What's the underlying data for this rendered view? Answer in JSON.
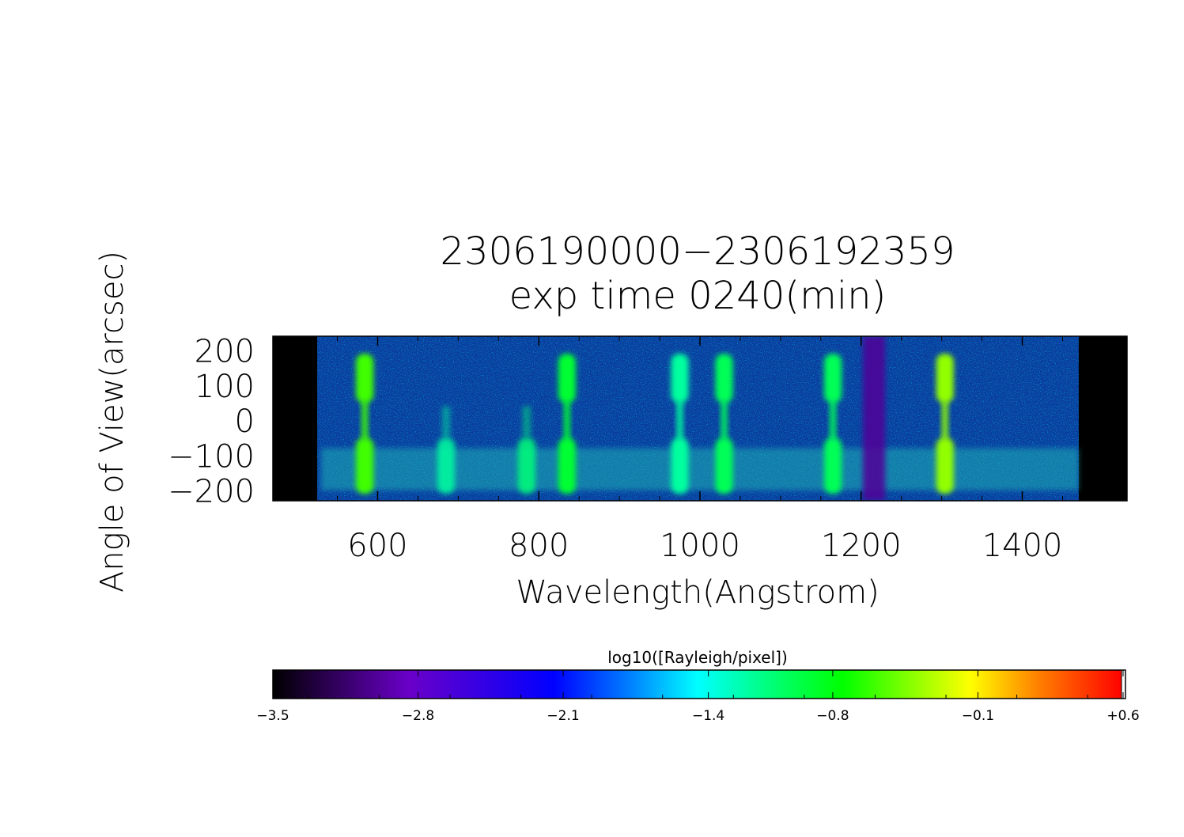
{
  "chart_data": {
    "type": "heatmap",
    "title": [
      "2306190000−2306192359",
      "exp time 0240(min)"
    ],
    "xlabel": "Wavelength(Angstrom)",
    "ylabel": "Angle of View(arcsec)",
    "xlim": [
      470,
      1530
    ],
    "ylim": [
      -230,
      240
    ],
    "x_ticks": [
      600,
      800,
      1000,
      1200,
      1400
    ],
    "x_tick_labels": [
      "600",
      "800",
      "1000",
      "1200",
      "1400"
    ],
    "y_ticks": [
      200,
      100,
      0,
      -100,
      -200
    ],
    "y_tick_labels": [
      "200",
      "100",
      "0",
      "−100",
      "−200"
    ],
    "data_wavelength_range": [
      525,
      1470
    ],
    "emission_lines": [
      {
        "wavelength": 584,
        "log_intensity": -0.6,
        "spatial": "both"
      },
      {
        "wavelength": 835,
        "log_intensity": -0.9,
        "spatial": "both"
      },
      {
        "wavelength": 975,
        "log_intensity": -1.2,
        "spatial": "both"
      },
      {
        "wavelength": 1030,
        "log_intensity": -1.0,
        "spatial": "both"
      },
      {
        "wavelength": 1165,
        "log_intensity": -1.0,
        "spatial": "both"
      },
      {
        "wavelength": 1304,
        "log_intensity": -0.4,
        "spatial": "both"
      },
      {
        "wavelength": 685,
        "log_intensity": -1.2,
        "spatial": "lower"
      },
      {
        "wavelength": 785,
        "log_intensity": -1.1,
        "spatial": "lower"
      }
    ],
    "absorption_bands": [
      {
        "wavelength": 1216,
        "log_intensity": -3.0
      }
    ],
    "colorbar": {
      "label": "log10([Rayleigh/pixel])",
      "range": [
        -3.5,
        0.6
      ],
      "tick_labels": [
        "−3.5",
        "−2.8",
        "−2.1",
        "−1.4",
        "−0.8",
        "−0.1",
        "+0.6"
      ],
      "tick_values": [
        -3.5,
        -2.8,
        -2.1,
        -1.4,
        -0.8,
        -0.1,
        0.6
      ],
      "colors": [
        "#000000",
        "#6a00c8",
        "#0000ff",
        "#00ffff",
        "#00ff00",
        "#ffff00",
        "#ff0000"
      ]
    }
  }
}
